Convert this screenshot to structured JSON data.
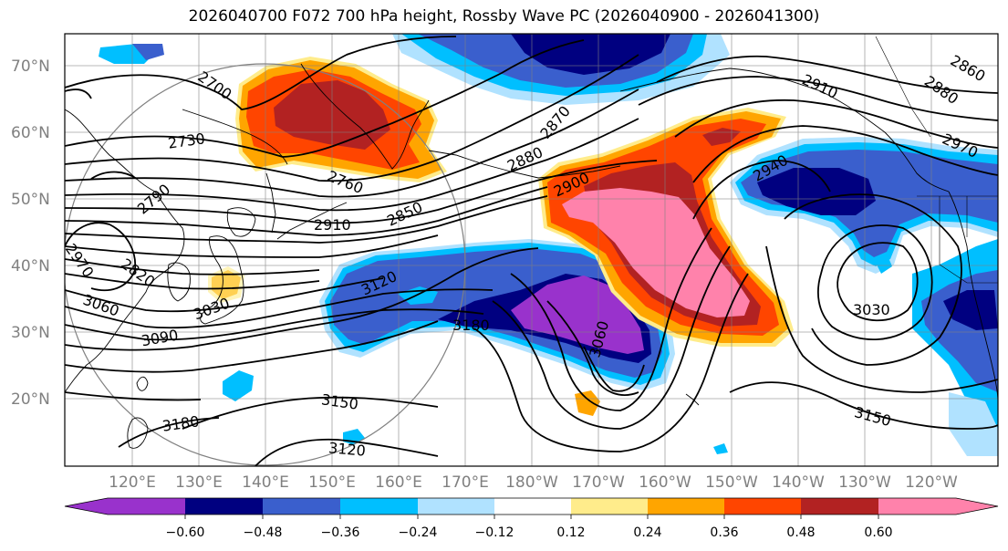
{
  "title": "2026040700 F072 700 hPa height, Rossby Wave PC (2026040900 - 2026041300)",
  "lat_labels": [
    "70°N",
    "60°N",
    "50°N",
    "40°N",
    "30°N",
    "20°N"
  ],
  "lon_labels": [
    "120°E",
    "130°E",
    "140°E",
    "150°E",
    "160°E",
    "170°E",
    "180°W",
    "170°W",
    "160°W",
    "150°W",
    "140°W",
    "130°W",
    "120°W"
  ],
  "contour_labels": [
    "2700",
    "2730",
    "2760",
    "2790",
    "2820",
    "2850",
    "2870",
    "2880",
    "2900",
    "2910",
    "2940",
    "2970",
    "3030",
    "3060",
    "3090",
    "3120",
    "3150",
    "3180",
    "2880",
    "2910",
    "2860",
    "2970",
    "3030",
    "3060",
    "3120",
    "3150",
    "3180"
  ],
  "colorbar": {
    "ticks": [
      "−0.60",
      "−0.48",
      "−0.36",
      "−0.24",
      "−0.12",
      "0.12",
      "0.24",
      "0.36",
      "0.48",
      "0.60"
    ],
    "colors": [
      "#9932cc",
      "#000080",
      "#3a5fcd",
      "#00bfff",
      "#b0e2ff",
      "#ffffff",
      "#ffec8b",
      "#ffa500",
      "#ff4500",
      "#b22222",
      "#ff82ab"
    ]
  },
  "palette": {
    "purple": "#9932cc",
    "navy": "#000080",
    "royal": "#3a5fcd",
    "cyan": "#00bfff",
    "lightblue": "#b0e2ff",
    "yellow": "#ffec8b",
    "orange": "#ffa500",
    "redorange": "#ff4500",
    "firebrick": "#b22222",
    "pink": "#ff82ab"
  }
}
